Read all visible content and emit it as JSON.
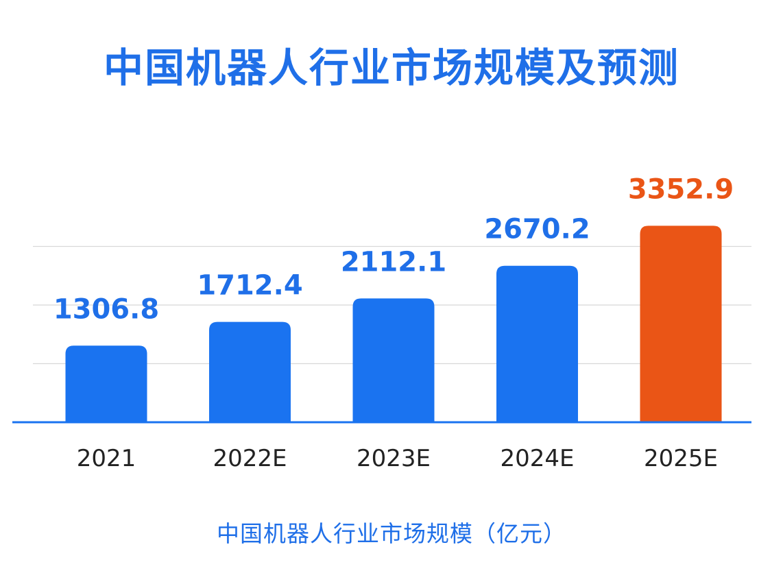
{
  "chart_data": {
    "type": "bar",
    "title": "中国机器人行业市场规模及预测",
    "categories": [
      "2021",
      "2022E",
      "2023E",
      "2024E",
      "2025E"
    ],
    "values": [
      1306.8,
      1712.4,
      2112.1,
      2670.2,
      3352.9
    ],
    "value_labels": [
      "1306.8",
      "1712.4",
      "2112.1",
      "2670.2",
      "3352.9"
    ],
    "xlabel": "中国机器人行业市场规模（亿元）",
    "ylabel": "",
    "ylim": [
      0,
      4000
    ],
    "grid": true,
    "colors": {
      "bar": "#1a73f0",
      "highlight_bar": "#ea5516",
      "label": "#1f6fe8",
      "highlight_label": "#ea5516",
      "tick_text": "#222222",
      "gridline": "#d8d8d8",
      "baseline": "#1a73f0"
    },
    "highlight_index": 4
  }
}
